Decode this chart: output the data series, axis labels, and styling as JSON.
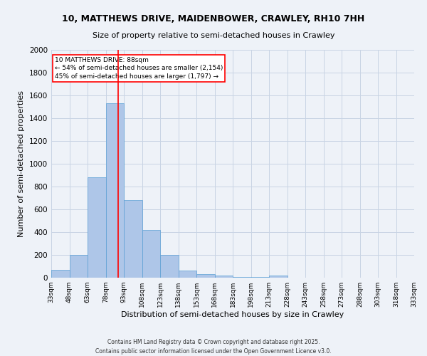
{
  "title_line1": "10, MATTHEWS DRIVE, MAIDENBOWER, CRAWLEY, RH10 7HH",
  "title_line2": "Size of property relative to semi-detached houses in Crawley",
  "xlabel": "Distribution of semi-detached houses by size in Crawley",
  "ylabel": "Number of semi-detached properties",
  "bin_edges": [
    33,
    48,
    63,
    78,
    93,
    108,
    123,
    138,
    153,
    168,
    183,
    198,
    213,
    228,
    243,
    258,
    273,
    288,
    303,
    318,
    333
  ],
  "bar_heights": [
    70,
    200,
    880,
    1530,
    680,
    420,
    200,
    60,
    30,
    20,
    5,
    5,
    20,
    0,
    0,
    0,
    0,
    0,
    0,
    0
  ],
  "bar_color": "#aec6e8",
  "bar_edge_color": "#5a9fd4",
  "property_size": 88,
  "property_line_color": "red",
  "annotation_title": "10 MATTHEWS DRIVE: 88sqm",
  "annotation_line1": "← 54% of semi-detached houses are smaller (2,154)",
  "annotation_line2": "45% of semi-detached houses are larger (1,797) →",
  "annotation_box_color": "white",
  "annotation_edge_color": "red",
  "ylim": [
    0,
    2000
  ],
  "yticks": [
    0,
    200,
    400,
    600,
    800,
    1000,
    1200,
    1400,
    1600,
    1800,
    2000
  ],
  "footer_line1": "Contains HM Land Registry data © Crown copyright and database right 2025.",
  "footer_line2": "Contains public sector information licensed under the Open Government Licence v3.0.",
  "bg_color": "#eef2f8",
  "grid_color": "#c8d4e4"
}
